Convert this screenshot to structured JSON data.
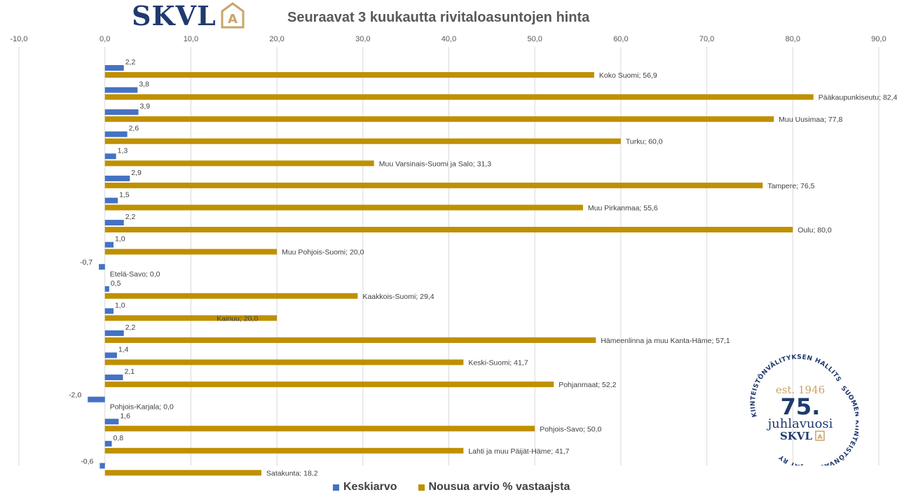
{
  "logo": {
    "text": "SKVL",
    "mark": "A"
  },
  "chart_data": {
    "type": "bar",
    "orientation": "horizontal",
    "title": "Seuraavat 3 kuukautta rivitaloasuntojen hinta",
    "xlim": [
      -10,
      90
    ],
    "x_ticks": [
      "-10,0",
      "0,0",
      "10,0",
      "20,0",
      "30,0",
      "40,0",
      "50,0",
      "60,0",
      "70,0",
      "80,0",
      "90,0"
    ],
    "x_tick_values": [
      -10,
      0,
      10,
      20,
      30,
      40,
      50,
      60,
      70,
      80,
      90
    ],
    "grid": true,
    "legend_position": "bottom",
    "categories": [
      "Koko Suomi",
      "Pääkaupunkiseutu",
      "Muu Uusimaa",
      "Turku",
      "Muu Varsinais-Suomi ja Salo",
      "Tampere",
      "Muu Pirkanmaa",
      "Oulu",
      "Muu Pohjois-Suomi",
      "Etelä-Savo",
      "Kaakkois-Suomi",
      "Kainuu",
      "Hämeenlinna ja muu Kanta-Häme",
      "Keski-Suomi",
      "Pohjanmaat",
      "Pohjois-Karjala",
      "Pohjois-Savo",
      "Lahti ja muu Päijät-Häme",
      "Satakunta"
    ],
    "series": [
      {
        "name": "Keskiarvo",
        "color": "#4472c4",
        "values": [
          2.2,
          3.8,
          3.9,
          2.6,
          1.3,
          2.9,
          1.5,
          2.2,
          1.0,
          -0.7,
          0.5,
          1.0,
          2.2,
          1.4,
          2.1,
          -2.0,
          1.6,
          0.8,
          -0.6
        ],
        "labels": [
          "2,2",
          "3,8",
          "3,9",
          "2,6",
          "1,3",
          "2,9",
          "1,5",
          "2,2",
          "1,0",
          "-0,7",
          "0,5",
          "1,0",
          "2,2",
          "1,4",
          "2,1",
          "-2,0",
          "1,6",
          "0,8",
          "-0,6"
        ]
      },
      {
        "name": "Nousua arvio % vastaajsta",
        "color": "#bf9000",
        "values": [
          56.9,
          82.4,
          77.8,
          60.0,
          31.3,
          76.5,
          55.6,
          80.0,
          20.0,
          0.0,
          29.4,
          20.0,
          57.1,
          41.7,
          52.2,
          0.0,
          50.0,
          41.7,
          18.2
        ],
        "labels": [
          "Koko Suomi; 56,9",
          "Pääkaupunkiseutu; 82,4",
          "Muu Uusimaa; 77,8",
          "Turku; 60,0",
          "Muu Varsinais-Suomi ja Salo; 31,3",
          "Tampere; 76,5",
          "Muu Pirkanmaa; 55,6",
          "Oulu; 80,0",
          "Muu Pohjois-Suomi; 20,0",
          "Etelä-Savo; 0,0",
          "Kaakkois-Suomi; 29,4",
          "Kainuu; 20,0",
          "Hämeenlinna ja muu Kanta-Häme; 57,1",
          "Keski-Suomi; 41,7",
          "Pohjanmaat; 52,2",
          "Pohjois-Karjala; 0,0",
          "Pohjois-Savo; 50,0",
          "Lahti ja muu Päijät-Häme; 41,7",
          "Satakunta; 18,2"
        ]
      }
    ]
  },
  "seal": {
    "top_arc": "KIINTEISTÖNVÄLITYKSEN HALLITSIJA",
    "right_arc": "SUOMEN KIINTEISTÖNVÄLITTÄJÄT RY",
    "est": "est. 1946",
    "number": "75.",
    "word": "juhlavuosi",
    "brand": "SKVL",
    "brand_mark": "A"
  }
}
